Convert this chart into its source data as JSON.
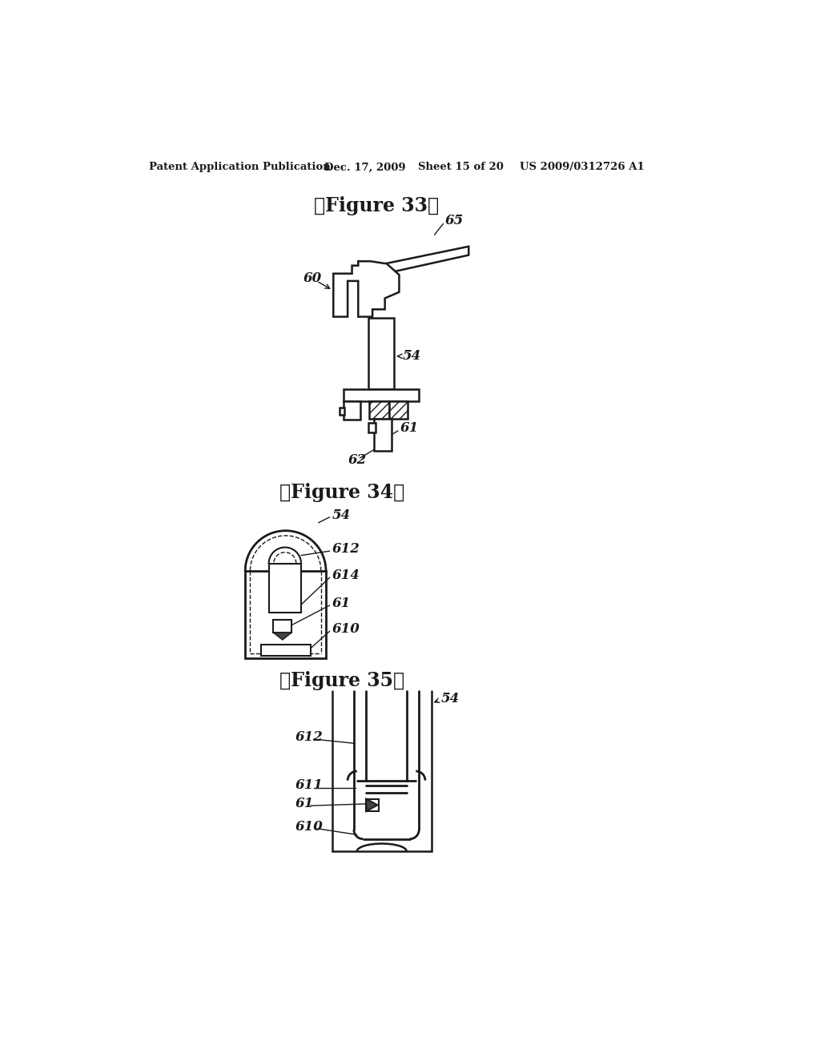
{
  "bg_color": "#ffffff",
  "header_text": "Patent Application Publication",
  "header_date": "Dec. 17, 2009",
  "header_sheet": "Sheet 15 of 20",
  "header_patent": "US 2009/0312726 A1",
  "fig33_title": "【Figure 33】",
  "fig34_title": "【Figure 34】",
  "fig35_title": "【Figure 35】",
  "line_color": "#1a1a1a"
}
